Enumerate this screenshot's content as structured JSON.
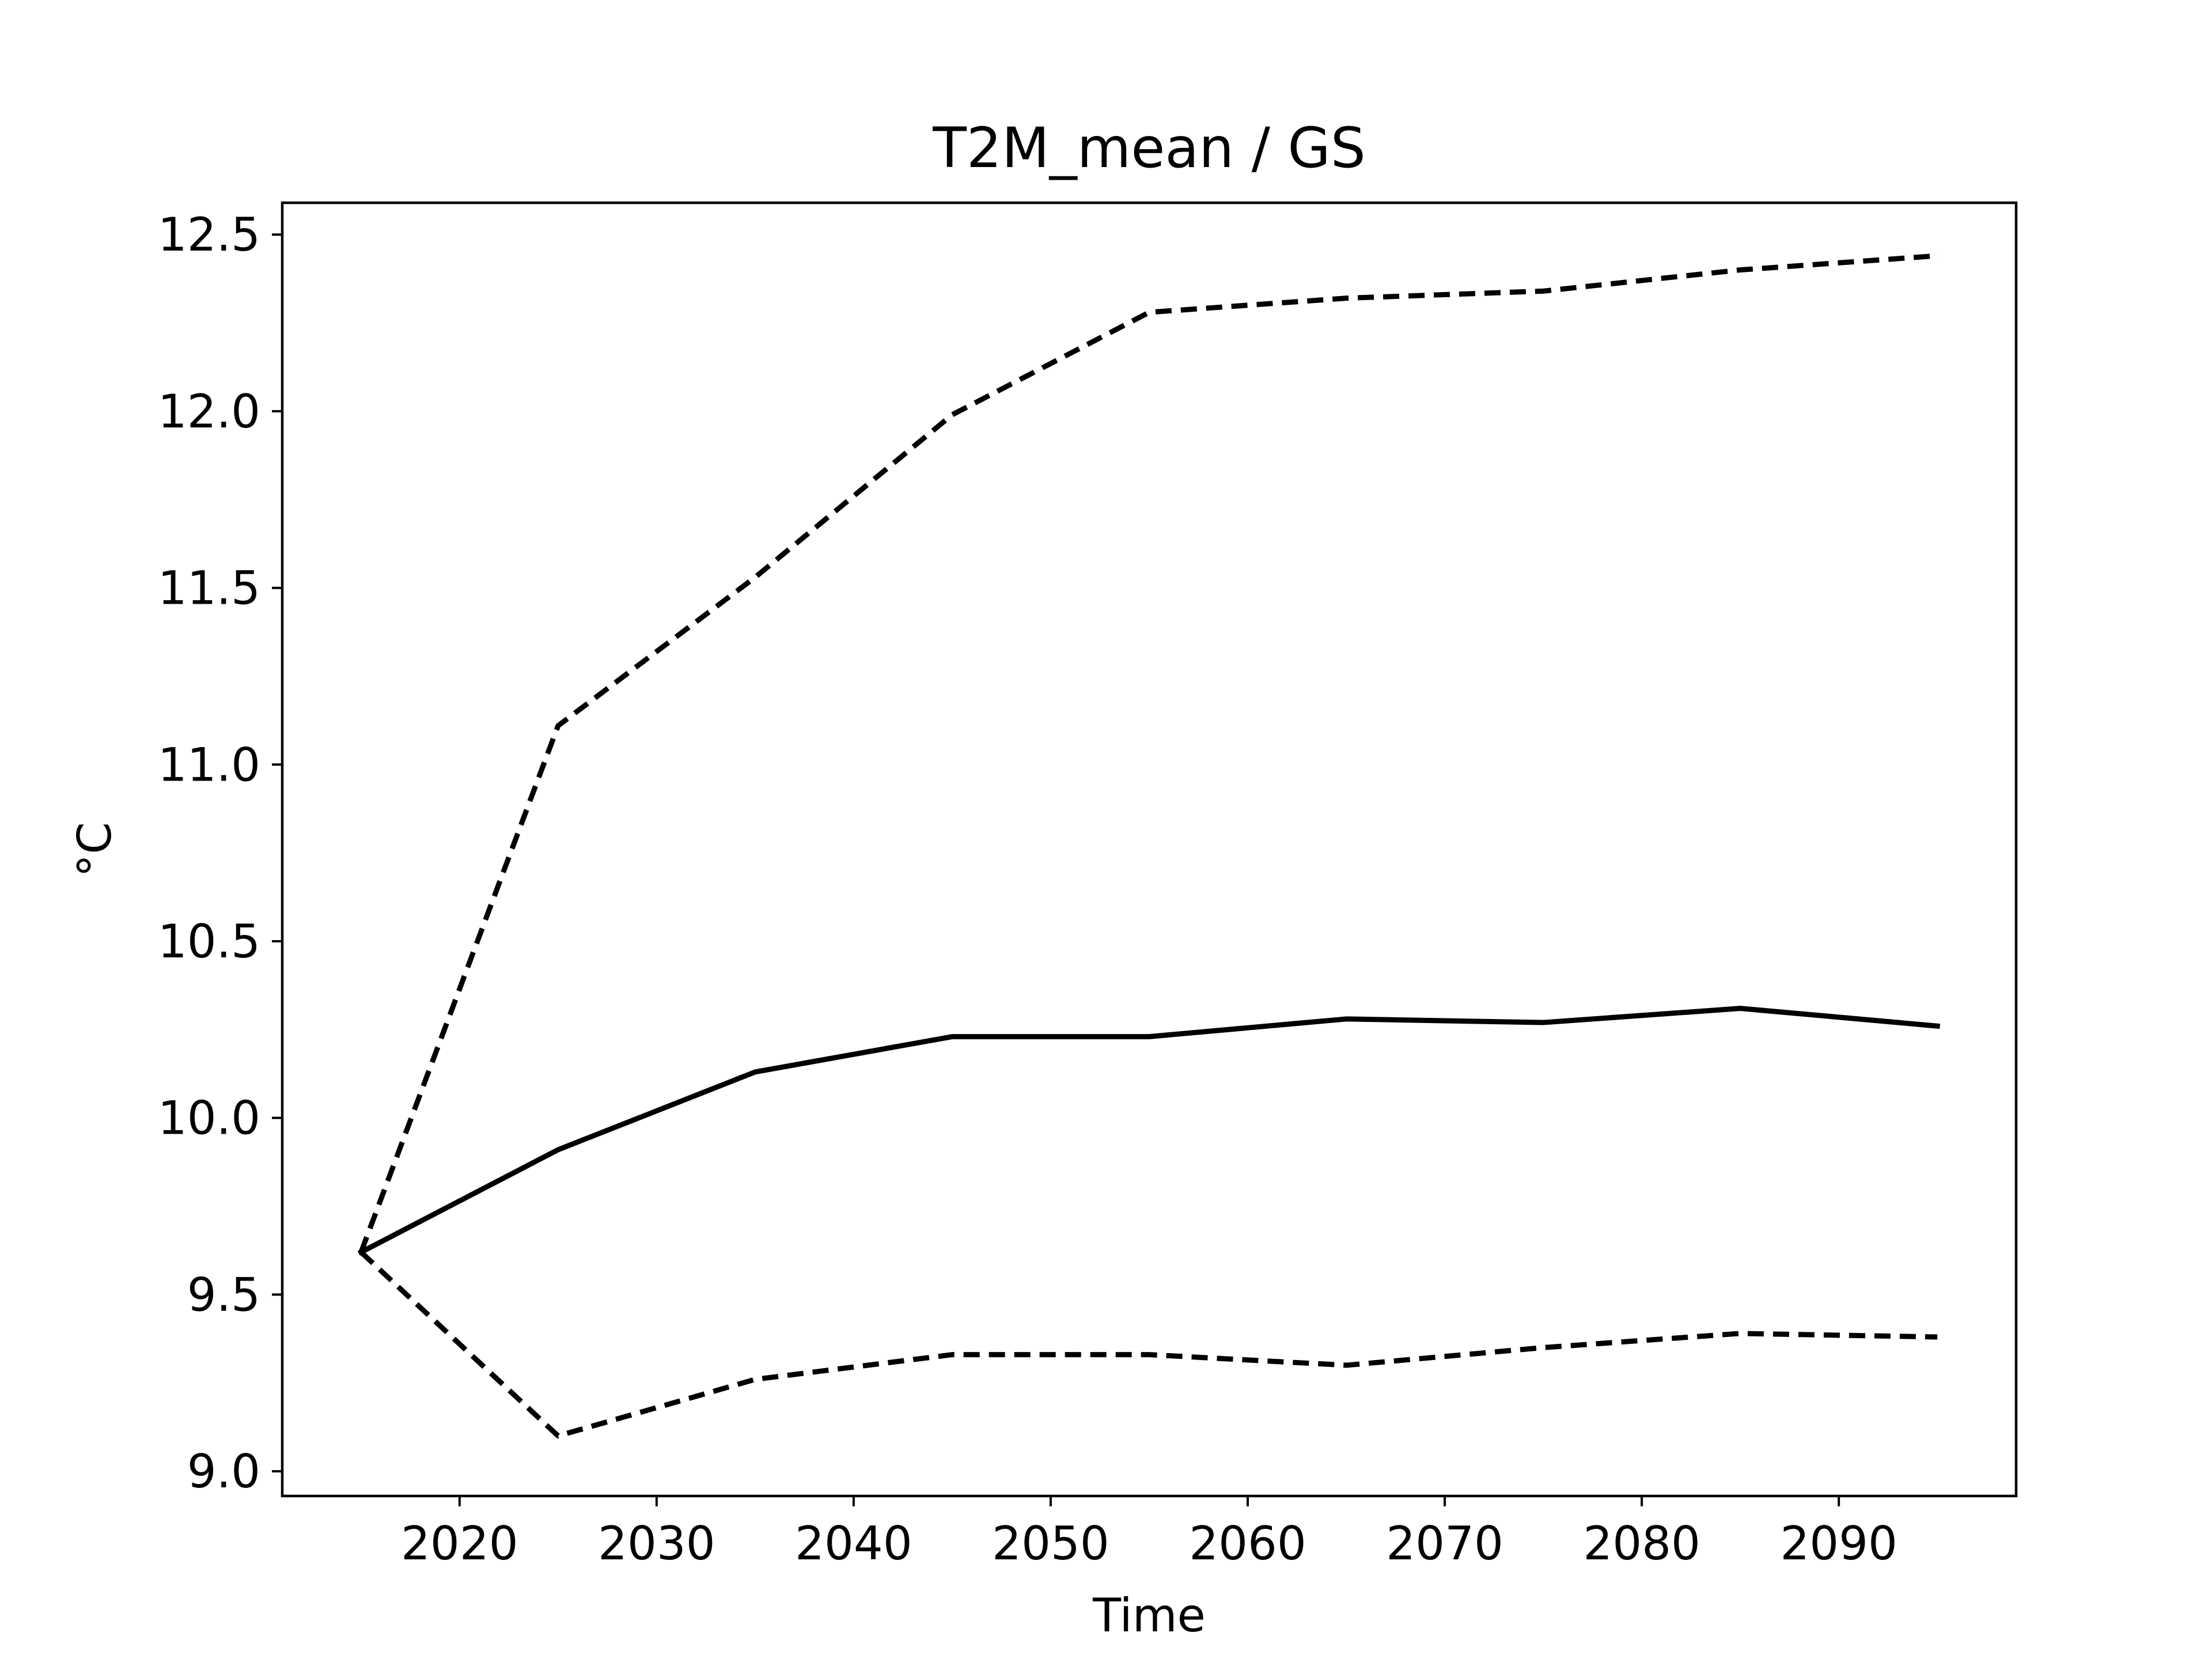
{
  "chart_data": {
    "type": "line",
    "title": "T2M_mean / GS",
    "xlabel": "Time",
    "ylabel": "°C",
    "xlim": [
      2011,
      2099
    ],
    "ylim": [
      8.93,
      12.59
    ],
    "x": [
      2015,
      2025,
      2035,
      2045,
      2055,
      2065,
      2075,
      2085,
      2095
    ],
    "xticks": [
      "2020",
      "2030",
      "2040",
      "2050",
      "2060",
      "2070",
      "2080",
      "2090"
    ],
    "yticks": [
      "9.0",
      "9.5",
      "10.0",
      "10.5",
      "11.0",
      "11.5",
      "12.0",
      "12.5"
    ],
    "grid": false,
    "series": [
      {
        "style": "solid",
        "color": "#000000",
        "values": [
          9.62,
          9.91,
          10.13,
          10.23,
          10.23,
          10.28,
          10.27,
          10.31,
          10.26
        ]
      },
      {
        "style": "dashed",
        "color": "#000000",
        "values": [
          9.62,
          11.11,
          11.53,
          11.99,
          12.28,
          12.32,
          12.34,
          12.4,
          12.44
        ]
      },
      {
        "style": "dashed",
        "color": "#000000",
        "values": [
          9.62,
          9.1,
          9.26,
          9.33,
          9.33,
          9.3,
          9.35,
          9.39,
          9.38
        ]
      }
    ]
  }
}
